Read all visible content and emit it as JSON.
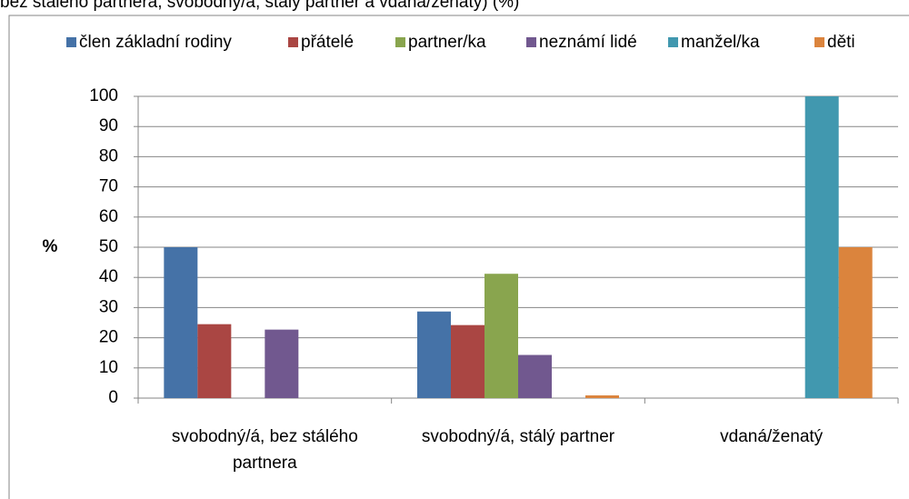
{
  "chart_data": {
    "type": "bar",
    "title": "bez stálého partnera, svobodný/á, stálý partner a vdaná/ženatý) (%)",
    "y_label": "%",
    "categories": [
      "svobodný/á, bez stálého partnera",
      "svobodný/á, stálý partner",
      "vdaná/ženatý"
    ],
    "series": [
      {
        "name": "člen základní rodiny",
        "color": "#4572A7",
        "values": [
          50,
          28.7,
          0
        ]
      },
      {
        "name": "přátelé",
        "color": "#AA4643",
        "values": [
          24.5,
          24.2,
          0
        ]
      },
      {
        "name": "partner/ka",
        "color": "#89A54E",
        "values": [
          0,
          41.2,
          0
        ]
      },
      {
        "name": "neznámí lidé",
        "color": "#71588F",
        "values": [
          22.7,
          14.3,
          0
        ]
      },
      {
        "name": "manžel/ka",
        "color": "#4198AF",
        "values": [
          0,
          0,
          100
        ]
      },
      {
        "name": "děti",
        "color": "#DB843D",
        "values": [
          0,
          0.9,
          50
        ]
      }
    ],
    "ylim": [
      0,
      100
    ],
    "yticks": [
      0,
      10,
      20,
      30,
      40,
      50,
      60,
      70,
      80,
      90,
      100
    ],
    "grid": true,
    "legend": "top"
  }
}
